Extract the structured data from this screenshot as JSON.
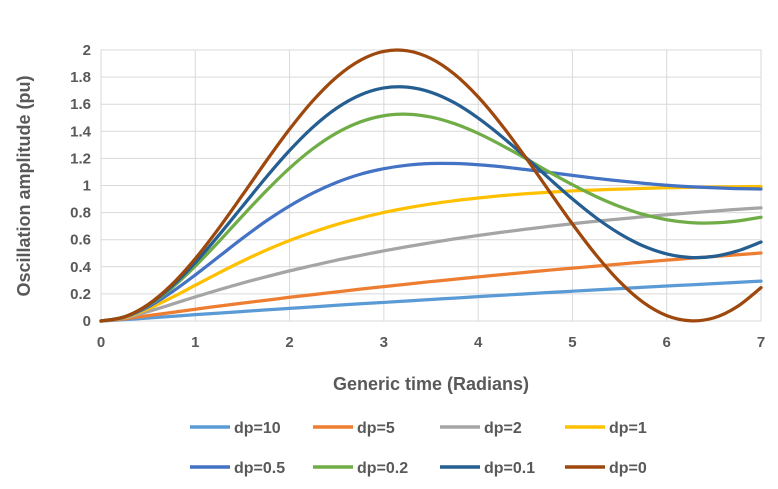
{
  "chart_data": {
    "type": "line",
    "title": "",
    "xlabel": "Generic time (Radians)",
    "ylabel": "Oscillation amplitude (pu)",
    "xlim": [
      0,
      7
    ],
    "ylim": [
      0,
      2
    ],
    "grid": true,
    "legend_position": "bottom",
    "x_ticks": [
      0,
      1,
      2,
      3,
      4,
      5,
      6,
      7
    ],
    "y_ticks": [
      {
        "value": 0,
        "label": "0"
      },
      {
        "value": 0.2,
        "label": "0.2"
      },
      {
        "value": 0.4,
        "label": "0.4"
      },
      {
        "value": 0.6,
        "label": "0.6"
      },
      {
        "value": 0.8,
        "label": "0.8"
      },
      {
        "value": 1,
        "label": "1"
      },
      {
        "value": 1.2,
        "label": "1.2"
      },
      {
        "value": 1.4,
        "label": "1.4"
      },
      {
        "value": 1.6,
        "label": "1.6"
      },
      {
        "value": 1.8,
        "label": "1.8"
      },
      {
        "value": 2,
        "label": "2"
      }
    ],
    "x": [
      0,
      0.25,
      0.5,
      0.75,
      1,
      1.25,
      1.5,
      1.75,
      2,
      2.25,
      2.5,
      2.75,
      3,
      3.25,
      3.5,
      3.75,
      4,
      4.25,
      4.5,
      4.75,
      5,
      5.25,
      5.5,
      5.75,
      6,
      6.25,
      6.5,
      6.75,
      7
    ],
    "series": [
      {
        "name": "dp=10",
        "color": "#5B9BD5",
        "values": [
          0,
          0.01,
          0.022,
          0.034,
          0.047,
          0.058,
          0.07,
          0.082,
          0.093,
          0.104,
          0.116,
          0.127,
          0.137,
          0.148,
          0.159,
          0.169,
          0.18,
          0.19,
          0.2,
          0.21,
          0.22,
          0.23,
          0.239,
          0.249,
          0.258,
          0.267,
          0.276,
          0.285,
          0.294
        ]
      },
      {
        "name": "dp=5",
        "color": "#ED7D31",
        "values": [
          0,
          0.016,
          0.04,
          0.063,
          0.087,
          0.11,
          0.132,
          0.153,
          0.175,
          0.195,
          0.215,
          0.235,
          0.254,
          0.272,
          0.291,
          0.308,
          0.326,
          0.342,
          0.359,
          0.375,
          0.39,
          0.405,
          0.42,
          0.435,
          0.449,
          0.463,
          0.476,
          0.489,
          0.502
        ]
      },
      {
        "name": "dp=2",
        "color": "#A5A5A5",
        "values": [
          0,
          0.023,
          0.07,
          0.123,
          0.178,
          0.23,
          0.28,
          0.326,
          0.37,
          0.41,
          0.449,
          0.484,
          0.518,
          0.549,
          0.578,
          0.606,
          0.631,
          0.655,
          0.677,
          0.698,
          0.718,
          0.736,
          0.753,
          0.769,
          0.784,
          0.798,
          0.811,
          0.824,
          0.835
        ]
      },
      {
        "name": "dp=1",
        "color": "#FFC000",
        "values": [
          0,
          0.026,
          0.09,
          0.173,
          0.264,
          0.355,
          0.442,
          0.522,
          0.594,
          0.657,
          0.713,
          0.76,
          0.801,
          0.835,
          0.864,
          0.888,
          0.908,
          0.925,
          0.939,
          0.95,
          0.96,
          0.967,
          0.973,
          0.979,
          0.983,
          0.986,
          0.989,
          0.991,
          0.993
        ]
      },
      {
        "name": "dp=0.5",
        "color": "#4472C4",
        "values": [
          0,
          0.029,
          0.104,
          0.213,
          0.34,
          0.475,
          0.61,
          0.737,
          0.849,
          0.945,
          1.023,
          1.083,
          1.124,
          1.15,
          1.162,
          1.162,
          1.153,
          1.138,
          1.118,
          1.097,
          1.075,
          1.053,
          1.034,
          1.017,
          1.002,
          0.991,
          0.983,
          0.977,
          0.974
        ]
      },
      {
        "name": "dp=0.2",
        "color": "#70AD47",
        "values": [
          0,
          0.03,
          0.115,
          0.244,
          0.405,
          0.586,
          0.775,
          0.959,
          1.128,
          1.273,
          1.388,
          1.469,
          1.515,
          1.526,
          1.505,
          1.456,
          1.385,
          1.297,
          1.201,
          1.101,
          1.006,
          0.919,
          0.845,
          0.787,
          0.747,
          0.726,
          0.724,
          0.738,
          0.766
        ]
      },
      {
        "name": "dp=0.1",
        "color": "#255E91",
        "values": [
          0,
          0.031,
          0.118,
          0.256,
          0.431,
          0.633,
          0.846,
          1.059,
          1.258,
          1.432,
          1.571,
          1.668,
          1.72,
          1.726,
          1.688,
          1.61,
          1.498,
          1.362,
          1.211,
          1.054,
          0.901,
          0.762,
          0.645,
          0.554,
          0.495,
          0.469,
          0.477,
          0.517,
          0.583
        ]
      },
      {
        "name": "dp=0",
        "color": "#9E480E",
        "values": [
          0,
          0.031,
          0.122,
          0.268,
          0.46,
          0.685,
          0.929,
          1.178,
          1.416,
          1.628,
          1.801,
          1.924,
          1.99,
          1.994,
          1.937,
          1.821,
          1.654,
          1.446,
          1.211,
          0.962,
          0.716,
          0.488,
          0.291,
          0.138,
          0.04,
          0.002,
          0.023,
          0.107,
          0.246
        ]
      }
    ],
    "legend_rows": [
      [
        "dp=10",
        "dp=5",
        "dp=2",
        "dp=1"
      ],
      [
        "dp=0.5",
        "dp=0.2",
        "dp=0.1",
        "dp=0"
      ]
    ]
  },
  "style": {
    "text_color": "#595959",
    "gridline_color": "#D9D9D9",
    "background": "#FFFFFF"
  }
}
